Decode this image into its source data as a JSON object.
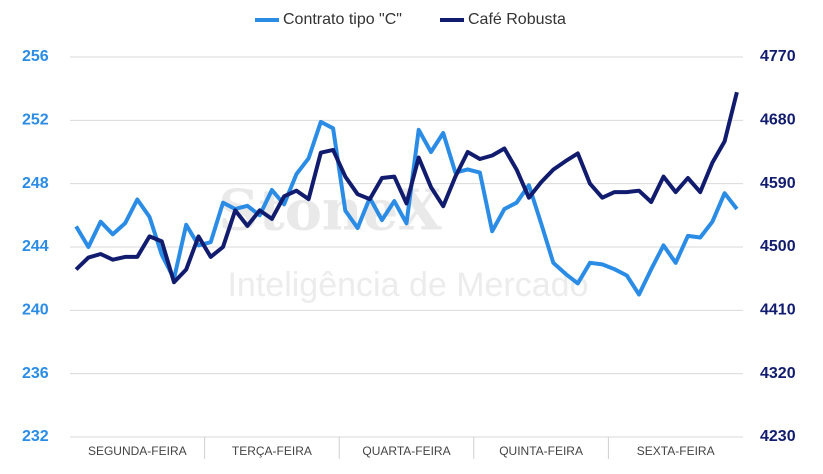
{
  "chart_data": {
    "type": "line",
    "watermark": [
      "StoneX",
      "Inteligência de Mercado"
    ],
    "categories": [
      "SEGUNDA-FEIRA",
      "TERÇA-FEIRA",
      "QUARTA-FEIRA",
      "QUINTA-FEIRA",
      "SEXTA-FEIRA"
    ],
    "series": [
      {
        "name": "Contrato tipo \"C\"",
        "color": "#2b8ce6",
        "axis": "y",
        "values": [
          [
            245.3,
            244.0,
            245.6,
            244.8,
            245.5,
            247.0,
            245.9,
            243.5,
            242.0,
            245.4,
            244.1
          ],
          [
            244.3,
            246.8,
            246.4,
            246.6,
            246.0,
            247.6,
            246.7,
            248.6,
            249.6,
            251.9,
            251.5
          ],
          [
            246.3,
            245.2,
            247.1,
            245.7,
            246.9,
            245.5,
            251.4,
            250.0,
            251.2,
            248.7,
            248.9
          ],
          [
            248.7,
            245.0,
            246.4,
            246.8,
            247.9,
            245.5,
            243.0,
            242.3,
            241.7,
            243.0,
            242.9
          ],
          [
            242.6,
            242.2,
            241.0,
            242.6,
            244.1,
            243.0,
            244.7,
            244.6,
            245.6,
            247.4,
            246.4
          ]
        ]
      },
      {
        "name": "Café Robusta",
        "color": "#111c6e",
        "axis": "y2",
        "values": [
          [
            4468,
            4485,
            4490,
            4482,
            4486,
            4486,
            4515,
            4508,
            4450,
            4468,
            4515
          ],
          [
            4486,
            4500,
            4552,
            4530,
            4552,
            4540,
            4572,
            4580,
            4568,
            4634,
            4638
          ],
          [
            4600,
            4575,
            4568,
            4598,
            4600,
            4562,
            4627,
            4585,
            4558,
            4600,
            4635
          ],
          [
            4625,
            4630,
            4640,
            4610,
            4570,
            4592,
            4610,
            4622,
            4633,
            4590,
            4570
          ],
          [
            4578,
            4578,
            4580,
            4564,
            4600,
            4578,
            4598,
            4578,
            4620,
            4650,
            4720
          ]
        ]
      }
    ],
    "ylim": [
      232,
      256
    ],
    "yticks": [
      232,
      236,
      240,
      244,
      248,
      252,
      256
    ],
    "y2lim": [
      4230,
      4770
    ],
    "y2ticks": [
      4230,
      4320,
      4410,
      4500,
      4590,
      4680,
      4770
    ],
    "grid": true,
    "legend": "top"
  }
}
